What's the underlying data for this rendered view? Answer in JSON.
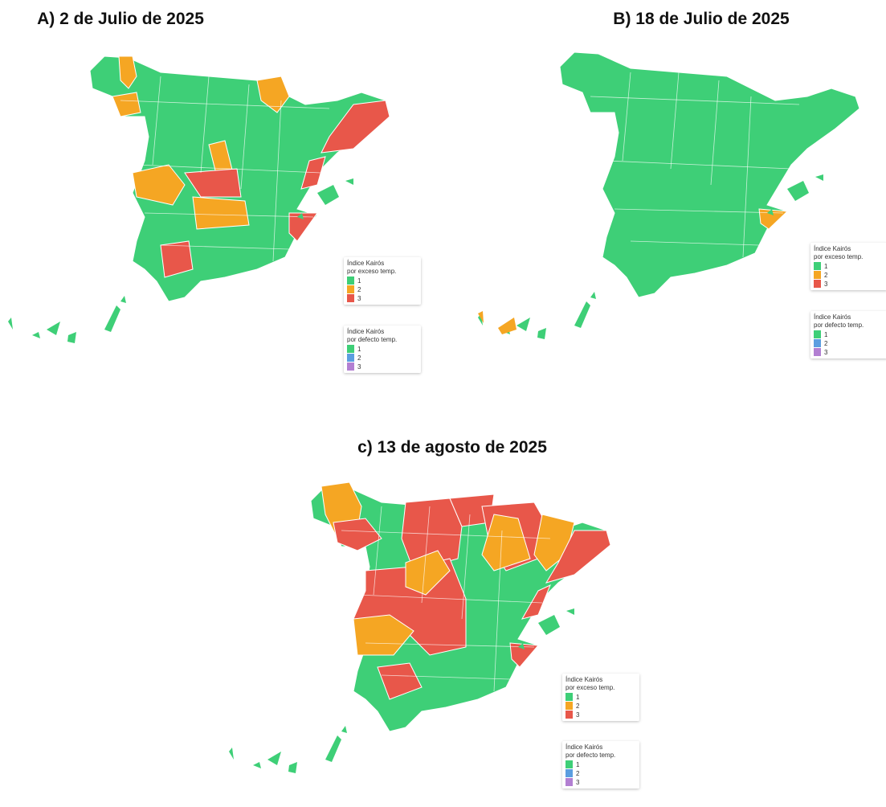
{
  "maps": [
    {
      "title": "A) 2 de Julio de 2025",
      "legends": [
        {
          "title": [
            "Índice Kairós",
            "por exceso temp."
          ],
          "items": [
            {
              "label": "1",
              "color": "#3ecf77"
            },
            {
              "label": "2",
              "color": "#f5a623"
            },
            {
              "label": "3",
              "color": "#e8574a"
            }
          ]
        },
        {
          "title": [
            "Índice Kairós",
            "por defecto temp."
          ],
          "items": [
            {
              "label": "1",
              "color": "#3ecf77"
            },
            {
              "label": "2",
              "color": "#5b9ee0"
            },
            {
              "label": "3",
              "color": "#b27fd2"
            }
          ]
        }
      ]
    },
    {
      "title": "B) 18 de Julio de 2025",
      "legends": [
        {
          "title": [
            "Índice Kairós",
            "por exceso temp."
          ],
          "items": [
            {
              "label": "1",
              "color": "#3ecf77"
            },
            {
              "label": "2",
              "color": "#f5a623"
            },
            {
              "label": "3",
              "color": "#e8574a"
            }
          ]
        },
        {
          "title": [
            "Índice Kairós",
            "por defecto temp."
          ],
          "items": [
            {
              "label": "1",
              "color": "#3ecf77"
            },
            {
              "label": "2",
              "color": "#5b9ee0"
            },
            {
              "label": "3",
              "color": "#b27fd2"
            }
          ]
        }
      ]
    },
    {
      "title": "c) 13 de agosto de 2025",
      "legends": [
        {
          "title": [
            "Índice Kairós",
            "por exceso temp."
          ],
          "items": [
            {
              "label": "1",
              "color": "#3ecf77"
            },
            {
              "label": "2",
              "color": "#f5a623"
            },
            {
              "label": "3",
              "color": "#e8574a"
            }
          ]
        },
        {
          "title": [
            "Índice Kairós",
            "por defecto temp."
          ],
          "items": [
            {
              "label": "1",
              "color": "#3ecf77"
            },
            {
              "label": "2",
              "color": "#5b9ee0"
            },
            {
              "label": "3",
              "color": "#b27fd2"
            }
          ]
        }
      ]
    }
  ]
}
